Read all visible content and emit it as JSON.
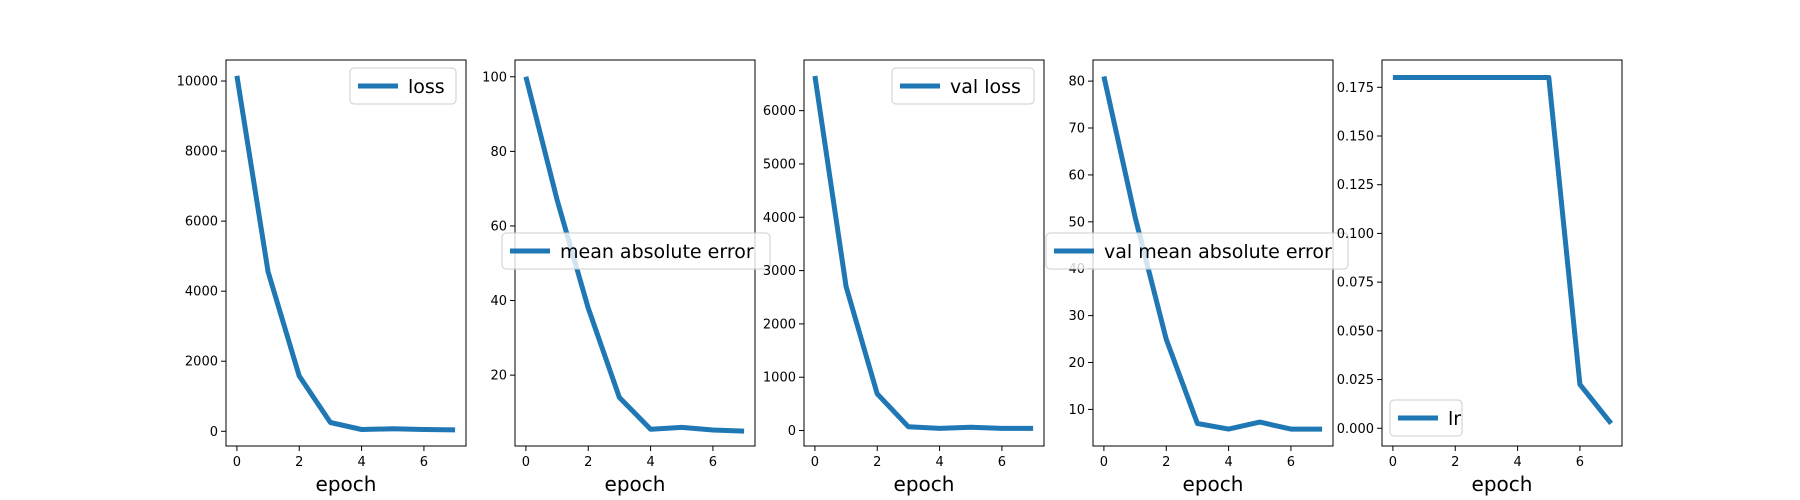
{
  "chart_data": [
    {
      "type": "line",
      "xlabel": "epoch",
      "x": [
        0,
        1,
        2,
        3,
        4,
        5,
        6,
        7
      ],
      "xlim": [
        -0.35,
        7.35
      ],
      "xticks": [
        0,
        2,
        4,
        6
      ],
      "ylim": [
        -420,
        10600
      ],
      "yticks": [
        0,
        2000,
        4000,
        6000,
        8000,
        10000
      ],
      "series": [
        {
          "name": "loss",
          "values": [
            10150,
            4550,
            1580,
            250,
            50,
            70,
            50,
            40
          ]
        }
      ],
      "legend": "upper right",
      "color": "#1f77b4"
    },
    {
      "type": "line",
      "xlabel": "epoch",
      "x": [
        0,
        1,
        2,
        3,
        4,
        5,
        6,
        7
      ],
      "xlim": [
        -0.35,
        7.35
      ],
      "xticks": [
        0,
        2,
        4,
        6
      ],
      "ylim": [
        1,
        104.5
      ],
      "yticks": [
        20,
        40,
        60,
        80,
        100
      ],
      "series": [
        {
          "name": "mean absolute error",
          "values": [
            100,
            67,
            38,
            14,
            5.5,
            6,
            5.3,
            5
          ]
        }
      ],
      "legend": "center right",
      "color": "#1f77b4"
    },
    {
      "type": "line",
      "xlabel": "epoch",
      "x": [
        0,
        1,
        2,
        3,
        4,
        5,
        6,
        7
      ],
      "xlim": [
        -0.35,
        7.35
      ],
      "xticks": [
        0,
        2,
        4,
        6
      ],
      "ylim": [
        -290,
        6950
      ],
      "yticks": [
        0,
        1000,
        2000,
        3000,
        4000,
        5000,
        6000
      ],
      "series": [
        {
          "name": "val loss",
          "values": [
            6650,
            2700,
            690,
            70,
            40,
            60,
            40,
            40
          ]
        }
      ],
      "legend": "upper right",
      "color": "#1f77b4"
    },
    {
      "type": "line",
      "xlabel": "epoch",
      "x": [
        0,
        1,
        2,
        3,
        4,
        5,
        6,
        7
      ],
      "xlim": [
        -0.35,
        7.35
      ],
      "xticks": [
        0,
        2,
        4,
        6
      ],
      "ylim": [
        2.2,
        84.5
      ],
      "yticks": [
        10,
        20,
        30,
        40,
        50,
        60,
        70,
        80
      ],
      "series": [
        {
          "name": "val mean absolute error",
          "values": [
            81,
            51,
            25,
            7,
            5.8,
            7.3,
            5.8,
            5.8
          ]
        }
      ],
      "legend": "center right",
      "color": "#1f77b4"
    },
    {
      "type": "line",
      "xlabel": "epoch",
      "x": [
        0,
        1,
        2,
        3,
        4,
        5,
        6,
        7
      ],
      "xlim": [
        -0.35,
        7.35
      ],
      "xticks": [
        0,
        2,
        4,
        6
      ],
      "ylim": [
        -0.0091,
        0.189
      ],
      "yticks": [
        0.0,
        0.025,
        0.05,
        0.075,
        0.1,
        0.125,
        0.15,
        0.175
      ],
      "ytick_labels": [
        "0.000",
        "0.025",
        "0.050",
        "0.075",
        "0.100",
        "0.125",
        "0.150",
        "0.175"
      ],
      "series": [
        {
          "name": "lr",
          "values": [
            0.18,
            0.18,
            0.18,
            0.18,
            0.18,
            0.18,
            0.0225,
            0.0025
          ]
        }
      ],
      "legend": "lower left",
      "color": "#1f77b4"
    }
  ]
}
